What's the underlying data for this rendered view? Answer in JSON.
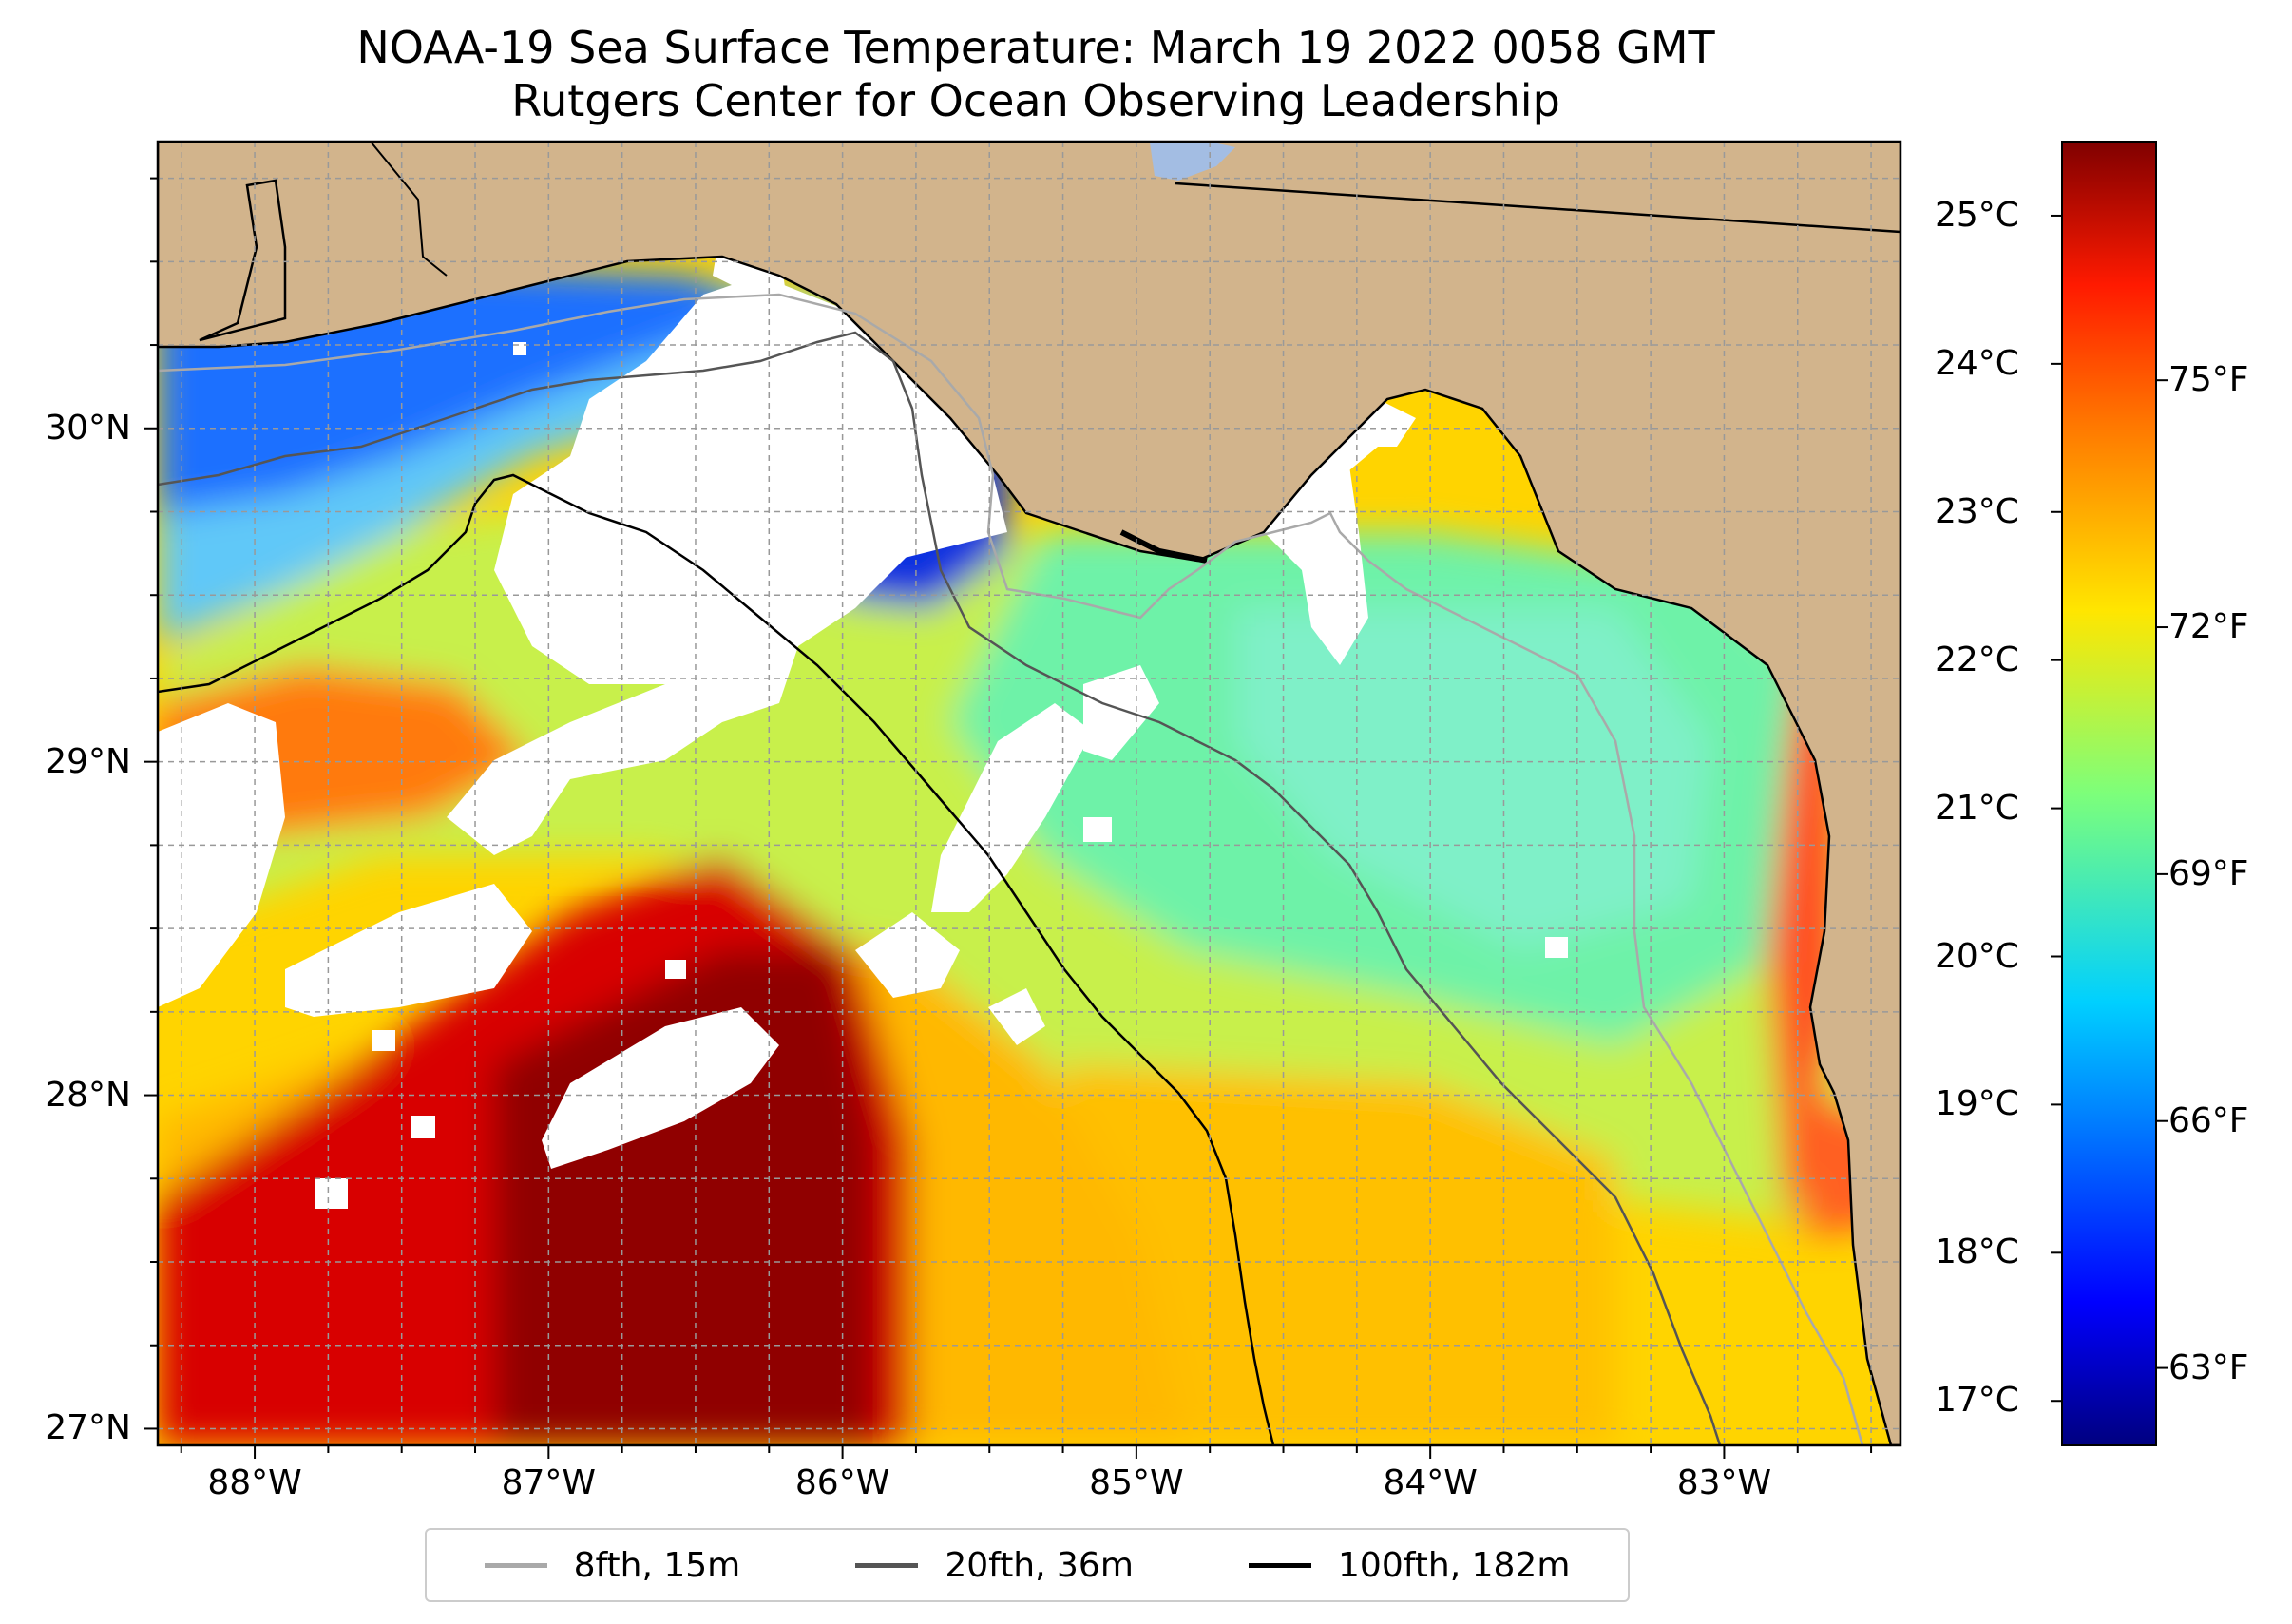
{
  "title": {
    "line1": "NOAA-19 Sea Surface Temperature: March 19 2022 0058 GMT",
    "line2": "Rutgers Center for Ocean Observing Leadership"
  },
  "map": {
    "land_color": "#d2b48c",
    "cloud_color": "#ffffff",
    "lakes_color": "#a3bde3",
    "lon_range": [
      -88.33,
      -82.4
    ],
    "lat_range": [
      26.95,
      30.86
    ],
    "lat_ticks": [
      {
        "value": 30,
        "label": "30°N"
      },
      {
        "value": 29,
        "label": "29°N"
      },
      {
        "value": 28,
        "label": "28°N"
      },
      {
        "value": 27,
        "label": "27°N"
      }
    ],
    "lon_ticks": [
      {
        "value": -88,
        "label": "88°W"
      },
      {
        "value": -87,
        "label": "87°W"
      },
      {
        "value": -86,
        "label": "86°W"
      },
      {
        "value": -85,
        "label": "85°W"
      },
      {
        "value": -84,
        "label": "84°W"
      },
      {
        "value": -83,
        "label": "83°W"
      }
    ],
    "gridlines": "dashed"
  },
  "colorbar": {
    "colormap": "jet",
    "range_c": [
      16.7,
      25.5
    ],
    "celsius_ticks": [
      {
        "value": 25,
        "label": "25°C"
      },
      {
        "value": 24,
        "label": "24°C"
      },
      {
        "value": 23,
        "label": "23°C"
      },
      {
        "value": 22,
        "label": "22°C"
      },
      {
        "value": 21,
        "label": "21°C"
      },
      {
        "value": 20,
        "label": "20°C"
      },
      {
        "value": 19,
        "label": "19°C"
      },
      {
        "value": 18,
        "label": "18°C"
      },
      {
        "value": 17,
        "label": "17°C"
      }
    ],
    "fahrenheit_ticks": [
      {
        "value": 75,
        "label": "75°F"
      },
      {
        "value": 72,
        "label": "72°F"
      },
      {
        "value": 69,
        "label": "69°F"
      },
      {
        "value": 66,
        "label": "66°F"
      },
      {
        "value": 63,
        "label": "63°F"
      }
    ]
  },
  "legend": [
    {
      "label": "8fth, 15m",
      "color": "#a9a9a9"
    },
    {
      "label": "20fth, 36m",
      "color": "#555555"
    },
    {
      "label": "100fth, 182m",
      "color": "#000000"
    }
  ]
}
